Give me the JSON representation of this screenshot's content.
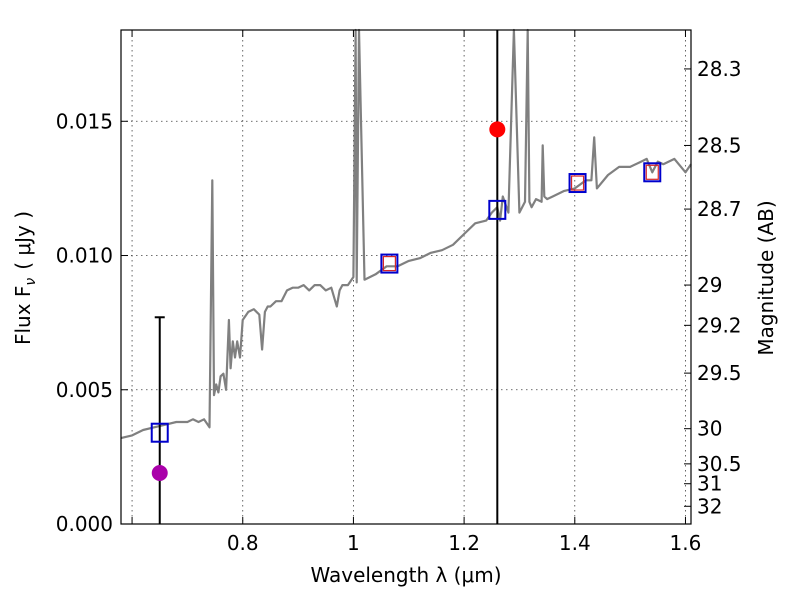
{
  "chart_data": {
    "type": "line",
    "title": "",
    "xlabel": "Wavelength  λ (μm)",
    "ylabel": "Flux  F",
    "ylabel_subscript": "ν",
    "ylabel_unit": "( μJy )",
    "y2label": "Magnitude (AB)",
    "xlim": [
      0.58,
      1.61
    ],
    "ylim": [
      0.0,
      0.0184
    ],
    "grid": true,
    "x_ticks": [
      0.6,
      0.8,
      1.0,
      1.2,
      1.4,
      1.6
    ],
    "x_tick_labels": [
      "",
      "0.8",
      "1",
      "1.2",
      "1.4",
      "1.6"
    ],
    "y_ticks": [
      0.0,
      0.005,
      0.01,
      0.015
    ],
    "y_tick_labels": [
      "0.000",
      "0.005",
      "0.010",
      "0.015"
    ],
    "y2_ticks": [
      {
        "label": "28.3",
        "flux": 0.01695
      },
      {
        "label": "28.5",
        "flux": 0.0141
      },
      {
        "label": "28.7",
        "flux": 0.01173
      },
      {
        "label": "29",
        "flux": 0.0089
      },
      {
        "label": "29.2",
        "flux": 0.0074
      },
      {
        "label": "29.5",
        "flux": 0.00562
      },
      {
        "label": "30",
        "flux": 0.00355
      },
      {
        "label": "30.5",
        "flux": 0.00224
      },
      {
        "label": "31",
        "flux": 0.0015
      },
      {
        "label": "32",
        "flux": 0.00066
      }
    ],
    "series": [
      {
        "type": "line",
        "color": "#808080",
        "x": [
          0.58,
          0.6,
          0.62,
          0.64,
          0.66,
          0.68,
          0.7,
          0.71,
          0.72,
          0.73,
          0.74,
          0.745,
          0.748,
          0.752,
          0.756,
          0.76,
          0.765,
          0.77,
          0.775,
          0.778,
          0.782,
          0.786,
          0.79,
          0.795,
          0.8,
          0.81,
          0.82,
          0.83,
          0.835,
          0.84,
          0.845,
          0.85,
          0.86,
          0.87,
          0.88,
          0.89,
          0.9,
          0.91,
          0.92,
          0.93,
          0.94,
          0.95,
          0.96,
          0.97,
          0.975,
          0.98,
          0.99,
          1.0,
          1.004,
          1.006,
          1.01,
          1.02,
          1.04,
          1.06,
          1.08,
          1.1,
          1.12,
          1.14,
          1.16,
          1.18,
          1.2,
          1.22,
          1.24,
          1.25,
          1.26,
          1.265,
          1.27,
          1.28,
          1.29,
          1.3,
          1.31,
          1.315,
          1.318,
          1.322,
          1.33,
          1.34,
          1.342,
          1.345,
          1.35,
          1.36,
          1.38,
          1.4,
          1.42,
          1.43,
          1.435,
          1.44,
          1.46,
          1.48,
          1.5,
          1.52,
          1.53,
          1.54,
          1.55,
          1.56,
          1.58,
          1.6,
          1.61
        ],
        "y": [
          0.0032,
          0.0033,
          0.0035,
          0.0036,
          0.0037,
          0.0038,
          0.0038,
          0.0039,
          0.0038,
          0.0039,
          0.0036,
          0.0128,
          0.0048,
          0.0052,
          0.0049,
          0.0055,
          0.0056,
          0.005,
          0.0076,
          0.0058,
          0.0068,
          0.0062,
          0.0068,
          0.0062,
          0.0076,
          0.0079,
          0.008,
          0.0078,
          0.0065,
          0.0079,
          0.0081,
          0.0081,
          0.0083,
          0.0083,
          0.0087,
          0.0088,
          0.0088,
          0.0089,
          0.0087,
          0.0089,
          0.0089,
          0.0087,
          0.0088,
          0.0081,
          0.0087,
          0.0089,
          0.0089,
          0.0092,
          0.0184,
          0.009,
          0.0184,
          0.0091,
          0.0093,
          0.0096,
          0.0096,
          0.0098,
          0.0099,
          0.0101,
          0.0102,
          0.0104,
          0.0108,
          0.0112,
          0.0113,
          0.0116,
          0.0118,
          0.0113,
          0.0122,
          0.0116,
          0.0184,
          0.0116,
          0.012,
          0.0184,
          0.012,
          0.0118,
          0.0121,
          0.012,
          0.0141,
          0.0122,
          0.0121,
          0.0122,
          0.0124,
          0.0125,
          0.0128,
          0.0128,
          0.0144,
          0.0125,
          0.013,
          0.0133,
          0.0133,
          0.0135,
          0.0136,
          0.0131,
          0.0135,
          0.0134,
          0.0136,
          0.0131,
          0.0134
        ]
      },
      {
        "type": "scatter",
        "marker": "open-square",
        "color": "#0000cc",
        "x": [
          0.65,
          1.065,
          1.26,
          1.405,
          1.54
        ],
        "y": [
          0.0034,
          0.0097,
          0.0117,
          0.0127,
          0.0131
        ]
      },
      {
        "type": "scatter",
        "marker": "open-square-small",
        "color": "#d62728",
        "x": [
          1.065,
          1.405,
          1.54
        ],
        "y": [
          0.0097,
          0.0127,
          0.0131
        ]
      },
      {
        "type": "scatter",
        "marker": "filled-circle",
        "color": "#ff0000",
        "x": [
          1.26
        ],
        "y": [
          0.0147
        ]
      },
      {
        "type": "scatter",
        "marker": "filled-circle",
        "color": "#aa00aa",
        "x": [
          0.65
        ],
        "y": [
          0.0019
        ]
      }
    ],
    "error_bars": [
      {
        "x": 0.65,
        "y_low": 0.0,
        "y_high": 0.0077,
        "cap": true,
        "color": "#000000"
      },
      {
        "x": 1.26,
        "y_low": 0.0,
        "y_high": 0.0184,
        "cap": false,
        "color": "#000000"
      }
    ]
  }
}
